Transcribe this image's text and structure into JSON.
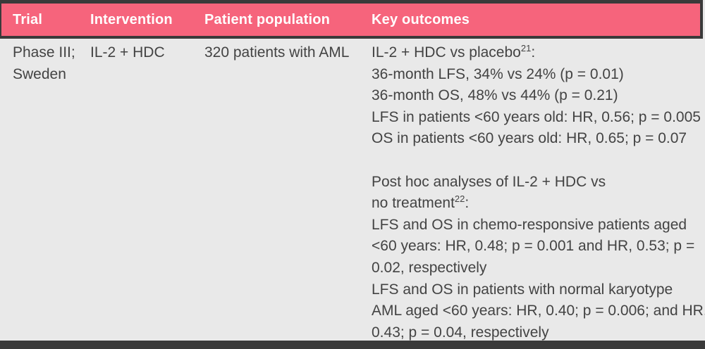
{
  "colors": {
    "header_bg": "#f6647c",
    "header_text": "#ffffff",
    "border_dark": "#3a3a3a",
    "body_bg": "#e9e9e9",
    "body_text": "#434343"
  },
  "table": {
    "columns": [
      {
        "label": "Trial"
      },
      {
        "label": "Intervention"
      },
      {
        "label": "Patient population"
      },
      {
        "label": "Key outcomes"
      }
    ],
    "row": {
      "trial_lines": [
        "Phase III;",
        "Sweden"
      ],
      "intervention": "IL-2 + HDC",
      "patient_population": "320 patients with AML",
      "key_outcomes_paragraphs": [
        {
          "lines": [
            [
              {
                "text": "IL-2 + HDC vs placebo"
              },
              {
                "text": "21",
                "sup": true
              },
              {
                "text": ":"
              }
            ],
            [
              {
                "text": "36-month LFS, 34% vs 24% (p = 0.01)"
              }
            ],
            [
              {
                "text": "36-month OS, 48% vs 44% (p = 0.21)"
              }
            ],
            [
              {
                "text": "LFS in patients <60 years old: HR, 0.56; p = 0.005"
              }
            ],
            [
              {
                "text": "OS in patients <60 years old: HR, 0.65; p = 0.07"
              }
            ]
          ]
        },
        {
          "lines": [
            [
              {
                "text": "Post hoc analyses of IL-2 + HDC vs"
              }
            ],
            [
              {
                "text": "no treatment"
              },
              {
                "text": "22",
                "sup": true
              },
              {
                "text": ":"
              }
            ],
            [
              {
                "text": "LFS and OS in chemo-responsive patients aged"
              }
            ],
            [
              {
                "text": "<60 years: HR, 0.48; p = 0.001 and HR, 0.53; p ="
              }
            ],
            [
              {
                "text": "0.02, respectively"
              }
            ],
            [
              {
                "text": "LFS and OS in patients with normal karyotype"
              }
            ],
            [
              {
                "text": "AML aged <60 years: HR, 0.40; p = 0.006; and HR,"
              }
            ],
            [
              {
                "text": "0.43; p = 0.04, respectively"
              }
            ]
          ]
        }
      ]
    }
  }
}
